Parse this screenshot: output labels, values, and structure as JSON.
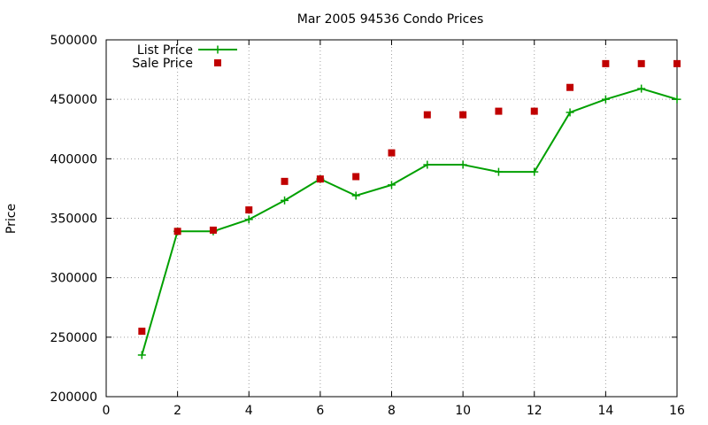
{
  "chart_data": {
    "type": "line",
    "title": "Mar 2005 94536 Condo Prices",
    "xlabel": "",
    "ylabel": "Price",
    "xlim": [
      0,
      16
    ],
    "ylim": [
      200000,
      500000
    ],
    "xticks": [
      0,
      2,
      4,
      6,
      8,
      10,
      12,
      14,
      16
    ],
    "yticks": [
      200000,
      250000,
      300000,
      350000,
      400000,
      450000,
      500000
    ],
    "grid": true,
    "legend_position": "top-left",
    "series": [
      {
        "name": "List Price",
        "style": "lines+points",
        "marker": "plus",
        "color": "#00a000",
        "x": [
          1,
          2,
          3,
          4,
          5,
          6,
          7,
          8,
          9,
          10,
          11,
          12,
          13,
          14,
          15,
          16
        ],
        "y": [
          235000,
          339000,
          339000,
          349000,
          365000,
          383000,
          369000,
          378000,
          395000,
          395000,
          389000,
          389000,
          439000,
          450000,
          459000,
          450000
        ]
      },
      {
        "name": "Sale Price",
        "style": "points",
        "marker": "square",
        "color": "#c00000",
        "x": [
          1,
          2,
          3,
          4,
          5,
          6,
          7,
          8,
          9,
          10,
          11,
          12,
          13,
          14,
          15,
          16
        ],
        "y": [
          255000,
          339000,
          340000,
          357000,
          381000,
          383000,
          385000,
          405000,
          437000,
          437000,
          440000,
          440000,
          460000,
          480000,
          480000,
          480000
        ]
      }
    ]
  }
}
